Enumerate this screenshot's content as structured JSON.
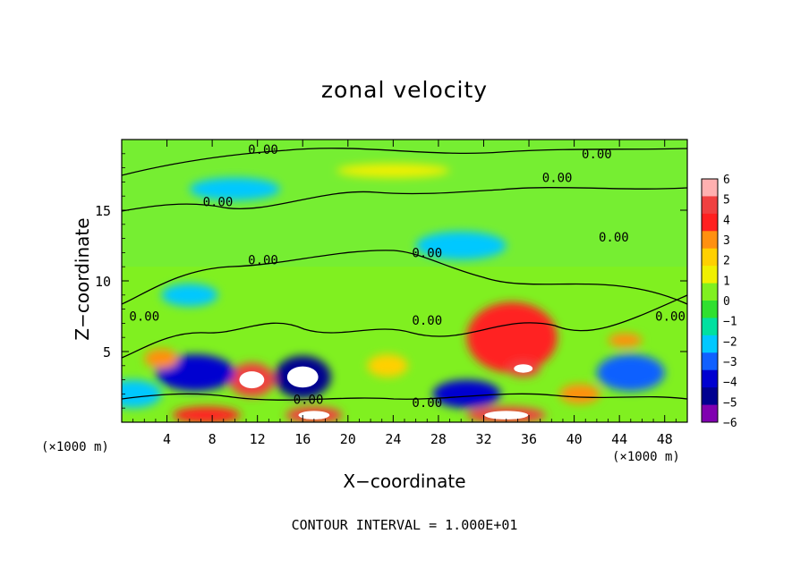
{
  "chart_data": {
    "type": "heatmap",
    "title": "zonal velocity",
    "xlabel": "X−coordinate",
    "ylabel": "Z−coordinate",
    "x_unit_left": "(×1000 m)",
    "x_unit_right": "(×1000 m)",
    "footer": "CONTOUR INTERVAL = 1.000E+01",
    "xlim": [
      0,
      50
    ],
    "ylim": [
      0,
      20
    ],
    "x_ticks": [
      4,
      8,
      12,
      16,
      20,
      24,
      28,
      32,
      36,
      40,
      44,
      48
    ],
    "y_ticks": [
      5,
      10,
      15
    ],
    "colorbar": {
      "range": [
        -6,
        6
      ],
      "ticks": [
        "6",
        "5",
        "4",
        "3",
        "2",
        "1",
        "0",
        "−1",
        "−2",
        "−3",
        "−4",
        "−5",
        "−6"
      ],
      "colors": [
        "#ffb0b0",
        "#f04040",
        "#ff2020",
        "#ff9010",
        "#ffd000",
        "#f0f000",
        "#80f020",
        "#30e030",
        "#00e0a0",
        "#00c8ff",
        "#1060ff",
        "#0000d0",
        "#000090",
        "#8000b0"
      ]
    },
    "contour_labels": [
      {
        "text": "0.00",
        "x": 12.5,
        "y": 19.3
      },
      {
        "text": "0.00",
        "x": 42.0,
        "y": 19.0
      },
      {
        "text": "0.00",
        "x": 38.5,
        "y": 17.3
      },
      {
        "text": "0.00",
        "x": 8.5,
        "y": 15.6
      },
      {
        "text": "0.00",
        "x": 43.5,
        "y": 13.1
      },
      {
        "text": "0.00",
        "x": 27.0,
        "y": 12.0
      },
      {
        "text": "0.00",
        "x": 12.5,
        "y": 11.5
      },
      {
        "text": "0.00",
        "x": 2.0,
        "y": 7.5
      },
      {
        "text": "0.00",
        "x": 27.0,
        "y": 7.2
      },
      {
        "text": "0.00",
        "x": 48.5,
        "y": 7.5
      },
      {
        "text": "0.00",
        "x": 16.5,
        "y": 1.6
      },
      {
        "text": "0.00",
        "x": 27.0,
        "y": 1.4
      }
    ],
    "features": [
      {
        "value": 4.5,
        "x": 34.5,
        "y": 6.0,
        "rx": 4.0,
        "ry": 2.5
      },
      {
        "value": 5.5,
        "x": 35.5,
        "y": 3.8,
        "rx": 1.5,
        "ry": 0.6
      },
      {
        "value": 5.0,
        "x": 11.5,
        "y": 3.0,
        "rx": 2.0,
        "ry": 1.2
      },
      {
        "value": -5.5,
        "x": 16.0,
        "y": 3.2,
        "rx": 2.5,
        "ry": 1.5
      },
      {
        "value": -4.0,
        "x": 6.5,
        "y": 3.5,
        "rx": 3.5,
        "ry": 1.3
      },
      {
        "value": 4.5,
        "x": 7.5,
        "y": 0.5,
        "rx": 3.0,
        "ry": 0.6
      },
      {
        "value": 5.0,
        "x": 17.0,
        "y": 0.5,
        "rx": 2.5,
        "ry": 0.6
      },
      {
        "value": 5.0,
        "x": 34.0,
        "y": 0.5,
        "rx": 3.5,
        "ry": 0.6
      },
      {
        "value": -3.5,
        "x": 45.0,
        "y": 3.5,
        "rx": 3.0,
        "ry": 1.3
      },
      {
        "value": -4.0,
        "x": 30.5,
        "y": 2.0,
        "rx": 3.0,
        "ry": 1.0
      },
      {
        "value": -2.5,
        "x": 30.0,
        "y": 12.5,
        "rx": 4.0,
        "ry": 1.0
      },
      {
        "value": -2.0,
        "x": 10.0,
        "y": 16.5,
        "rx": 4.0,
        "ry": 0.8
      },
      {
        "value": 3.0,
        "x": 44.5,
        "y": 5.8,
        "rx": 1.5,
        "ry": 0.5
      },
      {
        "value": 3.0,
        "x": 3.5,
        "y": 4.5,
        "rx": 1.5,
        "ry": 0.7
      },
      {
        "value": 2.5,
        "x": 23.5,
        "y": 4.0,
        "rx": 1.8,
        "ry": 0.8
      },
      {
        "value": 3.5,
        "x": 40.5,
        "y": 2.0,
        "rx": 1.8,
        "ry": 0.7
      },
      {
        "value": -2.0,
        "x": 1.0,
        "y": 2.0,
        "rx": 2.5,
        "ry": 1.0
      },
      {
        "value": 1.0,
        "x": 24.0,
        "y": 17.8,
        "rx": 5.0,
        "ry": 0.5
      },
      {
        "value": -2.0,
        "x": 6.0,
        "y": 9.0,
        "rx": 2.5,
        "ry": 0.8
      }
    ]
  }
}
